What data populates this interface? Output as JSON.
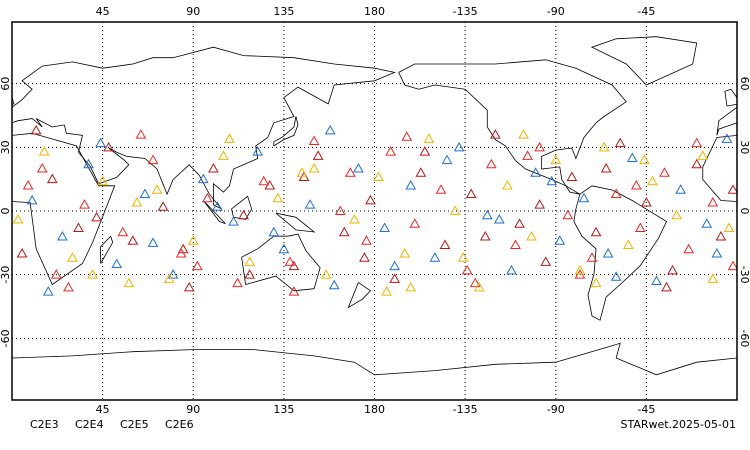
{
  "chart_data": {
    "type": "scatter",
    "xlim": [
      0,
      360
    ],
    "ylim": [
      -90,
      90
    ],
    "xticks": [
      45,
      90,
      135,
      180,
      {
        "value": 225,
        "label": "-135"
      },
      {
        "value": 270,
        "label": "-90"
      },
      {
        "value": 315,
        "label": "-45"
      }
    ],
    "yticks": [
      -60,
      -30,
      0,
      30,
      60
    ],
    "grid": true,
    "annotation": "STARwet.2025-05-01",
    "series": [
      {
        "name": "C2E3",
        "color": "#1f6fd8",
        "x": [
          10,
          25,
          38,
          52,
          66,
          80,
          95,
          110,
          122,
          135,
          148,
          160,
          172,
          185,
          198,
          210,
          222,
          236,
          248,
          260,
          272,
          284,
          296,
          308,
          320,
          332,
          345,
          355,
          18,
          44,
          70,
          102,
          130,
          158,
          190,
          216,
          242,
          268,
          300,
          350
        ],
        "values": [
          5,
          -12,
          22,
          -25,
          8,
          -30,
          15,
          -5,
          28,
          -18,
          3,
          -35,
          20,
          -8,
          12,
          -22,
          30,
          -2,
          -28,
          18,
          -14,
          6,
          -20,
          25,
          -33,
          10,
          -6,
          34,
          -38,
          32,
          -15,
          2,
          -10,
          38,
          -26,
          24,
          -4,
          14,
          -31,
          -20
        ]
      },
      {
        "name": "C2E4",
        "color": "#b81818",
        "x": [
          5,
          20,
          33,
          48,
          60,
          75,
          88,
          100,
          115,
          128,
          140,
          152,
          165,
          178,
          190,
          203,
          215,
          228,
          240,
          252,
          265,
          278,
          290,
          302,
          315,
          328,
          340,
          352,
          12,
          42,
          85,
          118,
          145,
          175,
          205,
          235,
          262,
          295,
          325,
          358
        ],
        "values": [
          -20,
          15,
          -8,
          30,
          -14,
          2,
          -36,
          20,
          -2,
          12,
          -26,
          26,
          -10,
          5,
          -32,
          18,
          -16,
          8,
          36,
          -6,
          -24,
          16,
          -10,
          32,
          4,
          -28,
          22,
          -12,
          38,
          -3,
          -18,
          -30,
          16,
          -22,
          28,
          -12,
          3,
          20,
          -36,
          10
        ]
      },
      {
        "name": "C2E5",
        "color": "#e82828",
        "x": [
          8,
          22,
          36,
          55,
          70,
          84,
          97,
          112,
          125,
          138,
          150,
          163,
          176,
          188,
          200,
          213,
          226,
          238,
          250,
          262,
          276,
          288,
          300,
          312,
          324,
          336,
          348,
          358,
          28,
          64,
          92,
          140,
          168,
          196,
          230,
          256,
          282,
          310,
          340,
          15
        ],
        "values": [
          12,
          -30,
          3,
          -10,
          24,
          -20,
          6,
          -34,
          14,
          -24,
          33,
          0,
          -14,
          28,
          -6,
          10,
          -28,
          22,
          -16,
          30,
          -2,
          -22,
          8,
          -8,
          18,
          -18,
          4,
          -26,
          -36,
          36,
          -26,
          -38,
          18,
          35,
          -34,
          26,
          -30,
          12,
          32,
          20
        ]
      },
      {
        "name": "C2E6",
        "color": "#f2b400",
        "x": [
          3,
          16,
          30,
          45,
          58,
          72,
          90,
          105,
          118,
          132,
          144,
          156,
          170,
          182,
          195,
          207,
          220,
          232,
          246,
          258,
          270,
          282,
          294,
          306,
          318,
          330,
          343,
          356,
          40,
          78,
          108,
          150,
          186,
          224,
          254,
          290,
          314,
          348,
          62,
          198
        ],
        "values": [
          -4,
          28,
          -22,
          14,
          -34,
          10,
          -14,
          26,
          -24,
          6,
          18,
          -30,
          -4,
          16,
          -20,
          34,
          0,
          -36,
          12,
          -12,
          24,
          -28,
          30,
          -16,
          14,
          -2,
          26,
          -8,
          -30,
          -32,
          34,
          20,
          -38,
          -22,
          36,
          -34,
          24,
          -32,
          4,
          -36
        ]
      }
    ]
  }
}
